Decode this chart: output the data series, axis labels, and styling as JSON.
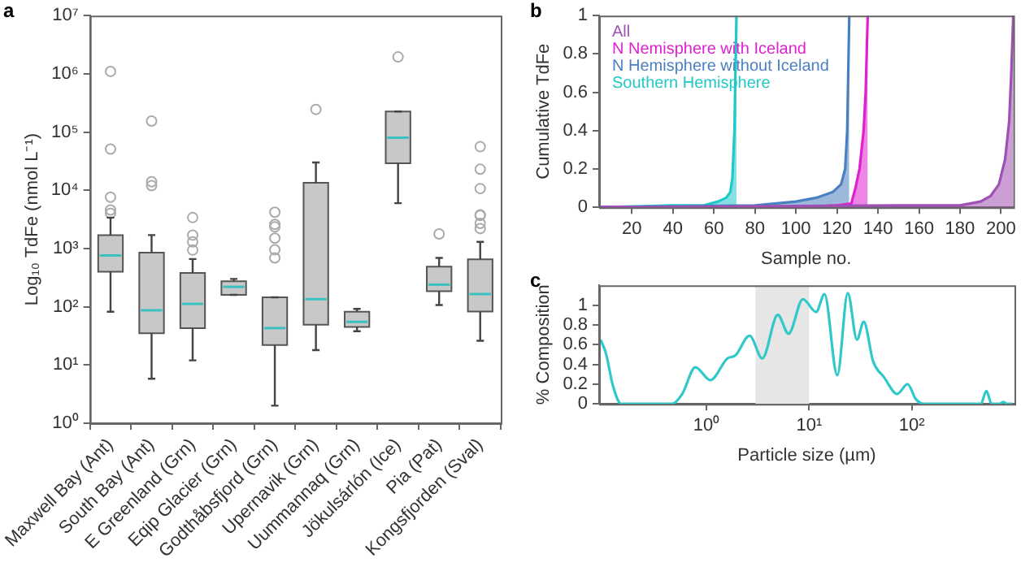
{
  "chart_data": [
    {
      "type": "box",
      "title": "a",
      "ylabel": "Log₁₀ TdFe (nmol L⁻¹)",
      "color": "#c8c8c8",
      "log": true,
      "grid": false,
      "categories": [
        "Maxwell Bay (Ant)",
        "South Bay (Ant)",
        "E Greenland (Grn)",
        "Eqip Glacier (Grn)",
        "Godthåbsfjord (Grn)",
        "Upernavik (Grn)",
        "Uummannaq (Grn)",
        "Jökulsárlón (Ice)",
        "Pia (Pat)",
        "Kongsfjorden (Sval)"
      ],
      "ylim": [
        1,
        10000000
      ],
      "yticks": [
        {
          "value": 1,
          "label": "10⁰"
        },
        {
          "value": 10,
          "label": "10¹"
        },
        {
          "value": 100,
          "label": "10²"
        },
        {
          "value": 1000,
          "label": "10³"
        },
        {
          "value": 10000,
          "label": "10⁴"
        },
        {
          "value": 100000,
          "label": "10⁵"
        },
        {
          "value": 1000000,
          "label": "10⁶"
        },
        {
          "value": 10000000,
          "label": "10⁷"
        }
      ],
      "boxes": [
        {
          "low": 82,
          "q1": 400,
          "median": 760,
          "q3": 1700,
          "high": 3400,
          "outliers": [
            1100000,
            51000,
            7600,
            4600,
            4000
          ]
        },
        {
          "low": 5.8,
          "q1": 35,
          "median": 87,
          "q3": 850,
          "high": 1700,
          "outliers": [
            155000,
            14000,
            12000
          ]
        },
        {
          "low": 12,
          "q1": 43,
          "median": 112,
          "q3": 380,
          "high": 660,
          "outliers": [
            3400,
            1700,
            1300,
            940
          ]
        },
        {
          "low": 160,
          "q1": 160,
          "median": 220,
          "q3": 275,
          "high": 300
        },
        {
          "low": 2,
          "q1": 22,
          "median": 43,
          "q3": 145,
          "high": 145,
          "outliers": [
            4200,
            2600,
            2350,
            1500,
            950,
            690
          ]
        },
        {
          "low": 18,
          "q1": 49,
          "median": 135,
          "q3": 13500,
          "high": 30000,
          "outliers": [
            245000
          ]
        },
        {
          "low": 38,
          "q1": 45,
          "median": 55,
          "q3": 82,
          "high": 92
        },
        {
          "low": 6000,
          "q1": 29000,
          "median": 80000,
          "q3": 225000,
          "high": 225000,
          "outliers": [
            1950000
          ]
        },
        {
          "low": 107,
          "q1": 185,
          "median": 240,
          "q3": 490,
          "high": 690,
          "outliers": [
            1780
          ]
        },
        {
          "low": 26,
          "q1": 83,
          "median": 165,
          "q3": 650,
          "high": 1300,
          "outliers": [
            56000,
            23000,
            10700,
            3800,
            3700,
            2700,
            2200
          ]
        }
      ]
    },
    {
      "type": "area",
      "title": "b",
      "xlabel": "Sample no.",
      "ylabel": "Cumulative TdFe",
      "grid": false,
      "legend": "top left",
      "xlim": [
        4,
        206
      ],
      "xticks": [
        20,
        40,
        60,
        80,
        100,
        120,
        140,
        160,
        180,
        200
      ],
      "ylim": [
        0,
        1
      ],
      "yticks": [
        0,
        0.2,
        0.4,
        0.6,
        0.8,
        1
      ],
      "series": [
        {
          "name": "All",
          "color": "#a050b4",
          "x": [
            4,
            150,
            180,
            190,
            195,
            199,
            202,
            204,
            205,
            206
          ],
          "values": [
            0,
            0.01,
            0.01,
            0.03,
            0.06,
            0.12,
            0.25,
            0.45,
            0.7,
            1
          ]
        },
        {
          "name": "N Nemisphere with Iceland",
          "color": "#e020d0",
          "x": [
            4,
            100,
            120,
            127,
            129,
            131,
            133,
            134,
            135
          ],
          "values": [
            0,
            0,
            0.01,
            0.02,
            0.1,
            0.2,
            0.4,
            0.6,
            1
          ]
        },
        {
          "name": "N Hemisphere without Iceland",
          "color": "#4a80c0",
          "x": [
            4,
            80,
            100,
            110,
            118,
            122,
            124,
            125,
            126
          ],
          "values": [
            0,
            0.01,
            0.03,
            0.05,
            0.08,
            0.12,
            0.2,
            0.4,
            1
          ]
        },
        {
          "name": "Southern Hemisphere",
          "color": "#20c8c8",
          "x": [
            4,
            40,
            55,
            62,
            66,
            68,
            69,
            70,
            71
          ],
          "values": [
            0,
            0.01,
            0.01,
            0.03,
            0.05,
            0.08,
            0.15,
            0.4,
            1
          ]
        }
      ]
    },
    {
      "type": "line",
      "title": "c",
      "xlabel": "Particle size (µm)",
      "ylabel": "% Composition",
      "grid": false,
      "log": "x",
      "color": "#30c8c8",
      "xlim": [
        0.09,
        1000
      ],
      "xticks": [
        {
          "value": 1,
          "label": "10⁰"
        },
        {
          "value": 10,
          "label": "10¹"
        },
        {
          "value": 100,
          "label": "10²"
        }
      ],
      "ylim": [
        0,
        1.2
      ],
      "yticks": [
        0,
        0.2,
        0.4,
        0.6,
        0.8,
        1
      ],
      "bands": [
        {
          "axis": "x",
          "from": 3,
          "to": 10,
          "color": "#e6e6e6"
        }
      ],
      "x": [
        0.093,
        0.105,
        0.123,
        0.148,
        0.46,
        0.58,
        0.78,
        1.09,
        1.6,
        1.91,
        2.63,
        3.5,
        4.95,
        6.3,
        8.7,
        11.7,
        14.1,
        18.8,
        23.8,
        29.2,
        34,
        42,
        53.6,
        72,
        91,
        109,
        131,
        470,
        532,
        600,
        716,
        778,
        850,
        950
      ],
      "values": [
        0.65,
        0.51,
        0.18,
        0,
        0,
        0.1,
        0.37,
        0.24,
        0.46,
        0.49,
        0.69,
        0.46,
        0.9,
        0.71,
        1.06,
        0.93,
        1.11,
        0.29,
        1.12,
        0.65,
        0.83,
        0.43,
        0.27,
        0.1,
        0.2,
        0.05,
        0,
        0,
        0.13,
        0,
        0,
        0.02,
        0,
        0
      ]
    }
  ]
}
